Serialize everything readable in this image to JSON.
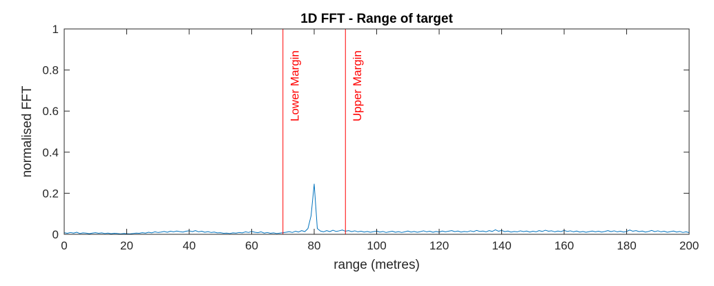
{
  "chart_data": {
    "type": "line",
    "title": "1D FFT - Range of target",
    "xlabel": "range (metres)",
    "ylabel": "normalised FFT",
    "xlim": [
      0,
      200
    ],
    "ylim": [
      0,
      1
    ],
    "xticks": [
      0,
      20,
      40,
      60,
      80,
      100,
      120,
      140,
      160,
      180,
      200
    ],
    "yticks": [
      0,
      0.2,
      0.4,
      0.6,
      0.8,
      1
    ],
    "xtick_labels": [
      "0",
      "20",
      "40",
      "60",
      "80",
      "100",
      "120",
      "140",
      "160",
      "180",
      "200"
    ],
    "ytick_labels": [
      "0",
      "0.2",
      "0.4",
      "0.6",
      "0.8",
      "1"
    ],
    "grid": false,
    "series": [
      {
        "color": "#0072BD",
        "x": [
          0,
          1,
          2,
          3,
          4,
          5,
          6,
          7,
          8,
          9,
          10,
          11,
          12,
          13,
          14,
          15,
          16,
          17,
          18,
          19,
          20,
          21,
          22,
          23,
          24,
          25,
          26,
          27,
          28,
          29,
          30,
          31,
          32,
          33,
          34,
          35,
          36,
          37,
          38,
          39,
          40,
          41,
          42,
          43,
          44,
          45,
          46,
          47,
          48,
          49,
          50,
          51,
          52,
          53,
          54,
          55,
          56,
          57,
          58,
          59,
          60,
          61,
          62,
          63,
          64,
          65,
          66,
          67,
          68,
          69,
          70,
          71,
          72,
          73,
          74,
          75,
          76,
          77,
          78,
          79,
          80,
          81,
          82,
          83,
          84,
          85,
          86,
          87,
          88,
          89,
          90,
          91,
          92,
          93,
          94,
          95,
          96,
          97,
          98,
          99,
          100,
          101,
          102,
          103,
          104,
          105,
          106,
          107,
          108,
          109,
          110,
          111,
          112,
          113,
          114,
          115,
          116,
          117,
          118,
          119,
          120,
          121,
          122,
          123,
          124,
          125,
          126,
          127,
          128,
          129,
          130,
          131,
          132,
          133,
          134,
          135,
          136,
          137,
          138,
          139,
          140,
          141,
          142,
          143,
          144,
          145,
          146,
          147,
          148,
          149,
          150,
          151,
          152,
          153,
          154,
          155,
          156,
          157,
          158,
          159,
          160,
          161,
          162,
          163,
          164,
          165,
          166,
          167,
          168,
          169,
          170,
          171,
          172,
          173,
          174,
          175,
          176,
          177,
          178,
          179,
          180,
          181,
          182,
          183,
          184,
          185,
          186,
          187,
          188,
          189,
          190,
          191,
          192,
          193,
          194,
          195,
          196,
          197,
          198,
          199,
          200
        ],
        "y": [
          0.008,
          0.005,
          0.009,
          0.006,
          0.01,
          0.004,
          0.007,
          0.006,
          0.003,
          0.006,
          0.008,
          0.005,
          0.007,
          0.004,
          0.006,
          0.003,
          0.005,
          0.004,
          0.002,
          0.004,
          0.003,
          0.002,
          0.004,
          0.006,
          0.005,
          0.008,
          0.006,
          0.01,
          0.007,
          0.012,
          0.009,
          0.011,
          0.014,
          0.01,
          0.015,
          0.012,
          0.016,
          0.013,
          0.011,
          0.015,
          0.017,
          0.013,
          0.018,
          0.012,
          0.015,
          0.01,
          0.013,
          0.009,
          0.011,
          0.007,
          0.008,
          0.005,
          0.006,
          0.004,
          0.007,
          0.006,
          0.009,
          0.007,
          0.012,
          0.009,
          0.014,
          0.01,
          0.008,
          0.012,
          0.006,
          0.009,
          0.005,
          0.007,
          0.004,
          0.006,
          0.008,
          0.01,
          0.013,
          0.009,
          0.015,
          0.011,
          0.018,
          0.013,
          0.028,
          0.09,
          0.245,
          0.028,
          0.016,
          0.012,
          0.018,
          0.013,
          0.02,
          0.014,
          0.017,
          0.021,
          0.015,
          0.018,
          0.013,
          0.017,
          0.012,
          0.015,
          0.011,
          0.014,
          0.01,
          0.013,
          0.016,
          0.011,
          0.014,
          0.009,
          0.012,
          0.015,
          0.01,
          0.013,
          0.009,
          0.012,
          0.016,
          0.011,
          0.014,
          0.01,
          0.013,
          0.017,
          0.012,
          0.015,
          0.01,
          0.014,
          0.011,
          0.016,
          0.012,
          0.015,
          0.018,
          0.013,
          0.016,
          0.011,
          0.014,
          0.012,
          0.017,
          0.013,
          0.019,
          0.014,
          0.016,
          0.012,
          0.018,
          0.014,
          0.022,
          0.015,
          0.019,
          0.013,
          0.016,
          0.011,
          0.014,
          0.012,
          0.017,
          0.013,
          0.016,
          0.011,
          0.015,
          0.012,
          0.018,
          0.014,
          0.02,
          0.015,
          0.017,
          0.012,
          0.016,
          0.013,
          0.019,
          0.014,
          0.017,
          0.012,
          0.016,
          0.011,
          0.014,
          0.01,
          0.013,
          0.016,
          0.012,
          0.015,
          0.011,
          0.014,
          0.018,
          0.013,
          0.017,
          0.012,
          0.015,
          0.011,
          0.014,
          0.021,
          0.015,
          0.018,
          0.013,
          0.016,
          0.011,
          0.014,
          0.019,
          0.013,
          0.017,
          0.012,
          0.015,
          0.01,
          0.013,
          0.016,
          0.011,
          0.014,
          0.009,
          0.012,
          0.008
        ]
      }
    ],
    "annotations": [
      {
        "type": "vline",
        "x": 70,
        "color": "#ff0000",
        "label": "Lower Margin",
        "label_y": 0.55
      },
      {
        "type": "vline",
        "x": 90,
        "color": "#ff0000",
        "label": "Upper Margin",
        "label_y": 0.55
      }
    ]
  }
}
